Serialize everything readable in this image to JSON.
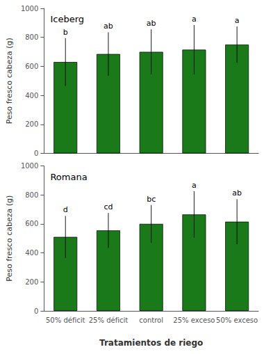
{
  "chart_data": [
    {
      "type": "bar",
      "title": "Iceberg",
      "categories": [
        "50% déficit",
        "25% déficit",
        "control",
        "25% exceso",
        "50% exceso"
      ],
      "values": [
        630,
        685,
        700,
        715,
        750
      ],
      "errors": [
        165,
        150,
        155,
        170,
        125
      ],
      "annotations": [
        "b",
        "ab",
        "ab",
        "a",
        "a"
      ],
      "color": "#1a7a1a",
      "ylabel": "Peso fresco cabeza (g)",
      "ylim": [
        0,
        1000
      ],
      "yticks": [
        0,
        200,
        400,
        600,
        800,
        1000
      ],
      "grid": false,
      "tick_labels": "y"
    },
    {
      "type": "bar",
      "title": "Romana",
      "categories": [
        "50% déficit",
        "25% déficit",
        "control",
        "25% exceso",
        "50% exceso"
      ],
      "values": [
        510,
        555,
        600,
        665,
        615
      ],
      "errors": [
        145,
        120,
        130,
        160,
        155
      ],
      "annotations": [
        "d",
        "cd",
        "bc",
        "a",
        "ab"
      ],
      "color": "#1a7a1a",
      "xlabel": "Tratamientos de riego",
      "ylabel": "Peso fresco cabeza (g)",
      "ylim": [
        0,
        1000
      ],
      "yticks": [
        0,
        200,
        400,
        600,
        800,
        1000
      ],
      "grid": false
    }
  ]
}
